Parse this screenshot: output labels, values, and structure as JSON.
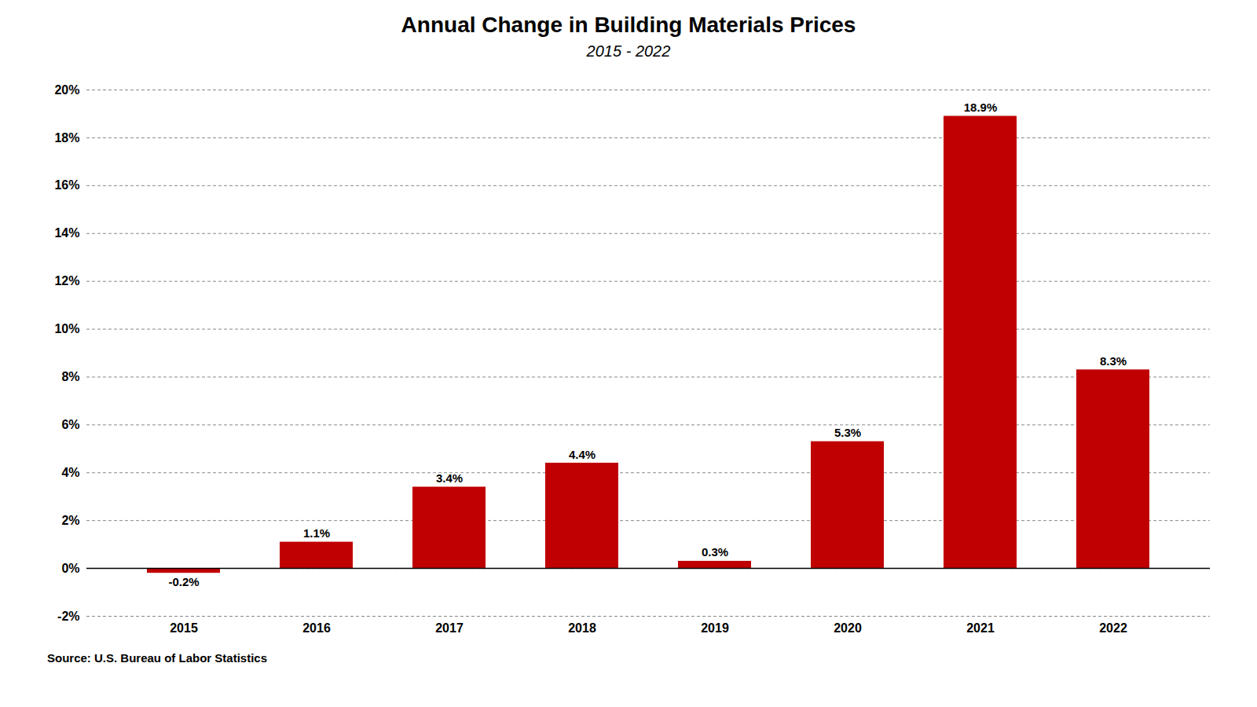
{
  "chart_data": {
    "type": "bar",
    "title": "Annual Change in Building Materials Prices",
    "subtitle": "2015 - 2022",
    "source": "Source: U.S. Bureau of Labor Statistics",
    "categories": [
      "2015",
      "2016",
      "2017",
      "2018",
      "2019",
      "2020",
      "2021",
      "2022"
    ],
    "values": [
      -0.2,
      1.1,
      3.4,
      4.4,
      0.3,
      5.3,
      18.9,
      8.3
    ],
    "value_labels": [
      "-0.2%",
      "1.1%",
      "3.4%",
      "4.4%",
      "0.3%",
      "5.3%",
      "18.9%",
      "8.3%"
    ],
    "data_labels": true,
    "color": "#C00000",
    "ylim": [
      -2,
      20
    ],
    "yticks": [
      {
        "value": -2,
        "label": "-2%"
      },
      {
        "value": 0,
        "label": "0%"
      },
      {
        "value": 2,
        "label": "2%"
      },
      {
        "value": 4,
        "label": "4%"
      },
      {
        "value": 6,
        "label": "6%"
      },
      {
        "value": 8,
        "label": "8%"
      },
      {
        "value": 10,
        "label": "10%"
      },
      {
        "value": 12,
        "label": "12%"
      },
      {
        "value": 14,
        "label": "14%"
      },
      {
        "value": 16,
        "label": "16%"
      },
      {
        "value": 18,
        "label": "18%"
      },
      {
        "value": 20,
        "label": "20%"
      }
    ],
    "grid": true
  }
}
